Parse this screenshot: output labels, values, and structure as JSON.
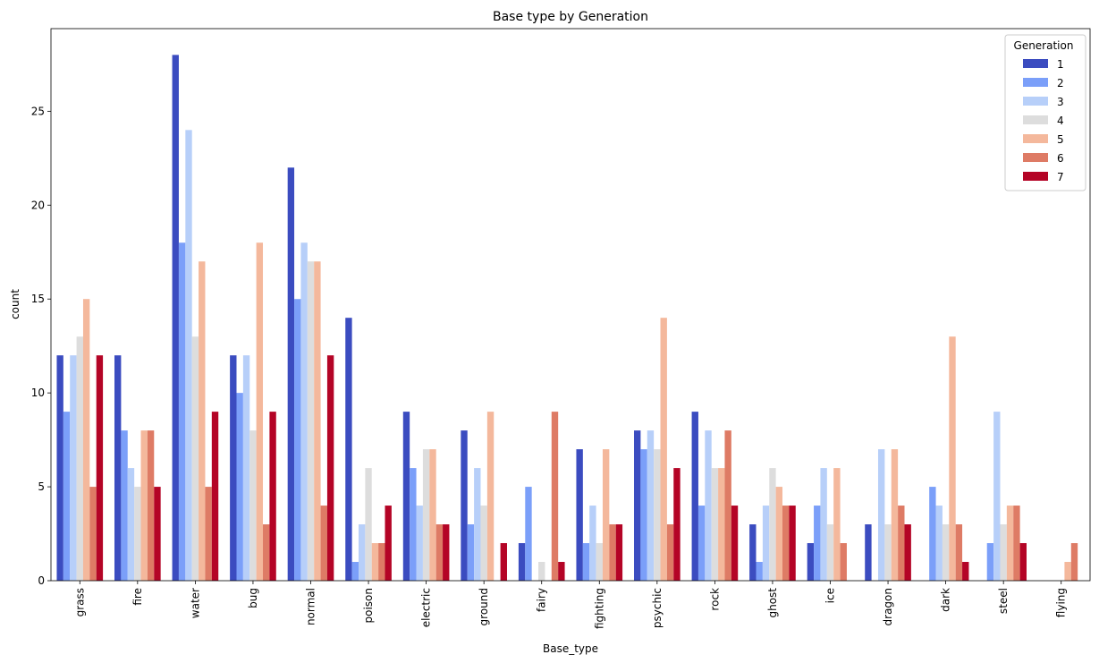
{
  "chart_data": {
    "type": "bar",
    "title": "Base type by Generation",
    "xlabel": "Base_type",
    "ylabel": "count",
    "ylim": [
      0,
      29.4
    ],
    "yticks": [
      0,
      5,
      10,
      15,
      20,
      25
    ],
    "grid": false,
    "legend": {
      "title": "Generation",
      "placement": "top-right"
    },
    "categories": [
      "grass",
      "fire",
      "water",
      "bug",
      "normal",
      "poison",
      "electric",
      "ground",
      "fairy",
      "fighting",
      "psychic",
      "rock",
      "ghost",
      "ice",
      "dragon",
      "dark",
      "steel",
      "flying"
    ],
    "series": [
      {
        "name": "1",
        "color": "#3b4cc0",
        "values": [
          12,
          12,
          28,
          12,
          22,
          14,
          9,
          8,
          2,
          7,
          8,
          9,
          3,
          2,
          3,
          0,
          0,
          0
        ]
      },
      {
        "name": "2",
        "color": "#7b9ff9",
        "values": [
          9,
          8,
          18,
          10,
          15,
          1,
          6,
          3,
          5,
          2,
          7,
          4,
          1,
          4,
          0,
          5,
          2,
          0
        ]
      },
      {
        "name": "3",
        "color": "#b7cff9",
        "values": [
          12,
          6,
          24,
          12,
          18,
          3,
          4,
          6,
          0,
          4,
          8,
          8,
          4,
          6,
          7,
          4,
          9,
          0
        ]
      },
      {
        "name": "4",
        "color": "#dddddd",
        "values": [
          13,
          5,
          13,
          8,
          17,
          6,
          7,
          4,
          1,
          2,
          7,
          6,
          6,
          3,
          3,
          3,
          3,
          0
        ]
      },
      {
        "name": "5",
        "color": "#f4b89c",
        "values": [
          15,
          8,
          17,
          18,
          17,
          2,
          7,
          9,
          0,
          7,
          14,
          6,
          5,
          6,
          7,
          13,
          4,
          1
        ]
      },
      {
        "name": "6",
        "color": "#de7b65",
        "values": [
          5,
          8,
          5,
          3,
          4,
          2,
          3,
          0,
          9,
          3,
          3,
          8,
          4,
          2,
          4,
          3,
          4,
          2
        ]
      },
      {
        "name": "7",
        "color": "#b40426",
        "values": [
          12,
          5,
          9,
          9,
          12,
          4,
          3,
          2,
          1,
          3,
          6,
          4,
          4,
          0,
          3,
          1,
          2,
          0
        ]
      }
    ]
  }
}
